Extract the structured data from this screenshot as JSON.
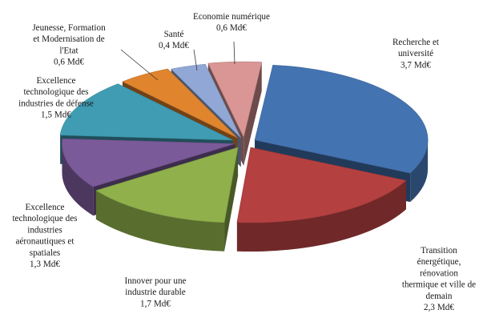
{
  "chart_data": {
    "type": "pie",
    "title": "",
    "unit": "Md€",
    "slices": [
      {
        "label": "Recherche et université",
        "value": 3.7,
        "value_label": "3,7 Md€",
        "color": "#4473b1"
      },
      {
        "label": "Transition énergétique, rénovation thermique et ville de demain",
        "value": 2.3,
        "value_label": "2,3 Md€",
        "color": "#b54040"
      },
      {
        "label": "Innover pour une industrie durable",
        "value": 1.7,
        "value_label": "1,7 Md€",
        "color": "#8fb04b"
      },
      {
        "label": "Excellence technologique des industries aéronautiques et spatiales",
        "value": 1.3,
        "value_label": "1,3 Md€",
        "color": "#7a5a99"
      },
      {
        "label": "Excellence technologique des industries de défense",
        "value": 1.5,
        "value_label": "1,5 Md€",
        "color": "#3f9cb3"
      },
      {
        "label": "Jeunesse, Formation et Modernisation de l'Etat",
        "value": 0.6,
        "value_label": "0,6 Md€",
        "color": "#e0842e"
      },
      {
        "label": "Santé",
        "value": 0.4,
        "value_label": "0,4 Md€",
        "color": "#91a8d6"
      },
      {
        "label": "Economie numérique",
        "value": 0.6,
        "value_label": "0,6 Md€",
        "color": "#d99694"
      }
    ]
  },
  "labels": [
    {
      "lines": [
        "Recherche et",
        "université",
        "3,7 Md€"
      ]
    },
    {
      "lines": [
        "Transition",
        "énergétique,",
        "rénovation",
        "thermique et ville de",
        "demain",
        "2,3 Md€"
      ]
    },
    {
      "lines": [
        "Innover pour une",
        "industrie durable",
        "1,7 Md€"
      ]
    },
    {
      "lines": [
        "Excellence",
        "technologique des",
        "industries",
        "aéronautiques et",
        "spatiales",
        "1,3 Md€"
      ]
    },
    {
      "lines": [
        "Excellence",
        "technologique des",
        "industries de défense",
        "1,5 Md€"
      ]
    },
    {
      "lines": [
        "Jeunesse, Formation",
        "et Modernisation de",
        "l'Etat",
        "0,6 Md€"
      ]
    },
    {
      "lines": [
        "Santé",
        "0,4 Md€"
      ]
    },
    {
      "lines": [
        "Economie numérique",
        "0,6 Md€"
      ]
    }
  ]
}
